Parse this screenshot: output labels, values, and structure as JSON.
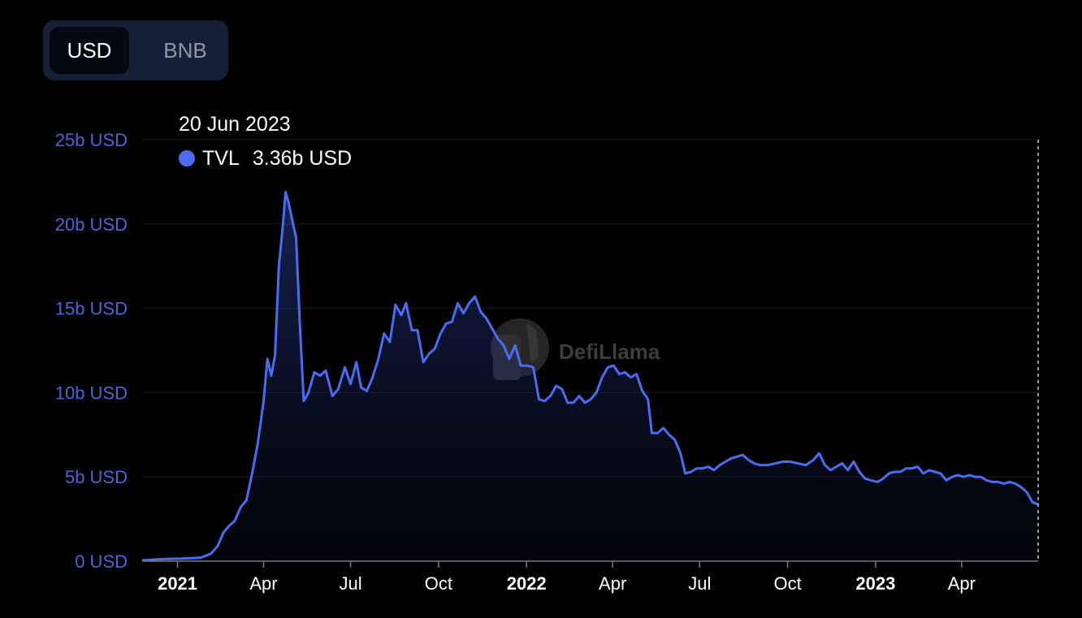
{
  "currency_toggle": {
    "options": [
      {
        "label": "USD",
        "active": true
      },
      {
        "label": "BNB",
        "active": false
      }
    ]
  },
  "tooltip": {
    "date": "20 Jun 2023",
    "series_name": "TVL",
    "value": "3.36b USD"
  },
  "watermark": {
    "text": "DefiLlama"
  },
  "colors": {
    "line": "#4a6cf0",
    "text_axis": "#4d63d8",
    "toggle_bg": "#152036",
    "grid": "#1a1a1a"
  },
  "chart_data": {
    "type": "area",
    "series": [
      {
        "name": "TVL"
      }
    ],
    "ylim": [
      0,
      25
    ],
    "y_ticks": [
      {
        "value": 0,
        "label": "0 USD"
      },
      {
        "value": 5,
        "label": "5b USD"
      },
      {
        "value": 10,
        "label": "10b USD"
      },
      {
        "value": 15,
        "label": "15b USD"
      },
      {
        "value": 20,
        "label": "20b USD"
      },
      {
        "value": 25,
        "label": "25b USD"
      }
    ],
    "xlim": [
      "2020-11-25",
      "2023-06-20"
    ],
    "x_ticks": [
      {
        "date": "2021-01-01",
        "label": "2021",
        "bold": true
      },
      {
        "date": "2021-04-01",
        "label": "Apr",
        "bold": false
      },
      {
        "date": "2021-07-01",
        "label": "Jul",
        "bold": false
      },
      {
        "date": "2021-10-01",
        "label": "Oct",
        "bold": false
      },
      {
        "date": "2022-01-01",
        "label": "2022",
        "bold": true
      },
      {
        "date": "2022-04-01",
        "label": "Apr",
        "bold": false
      },
      {
        "date": "2022-07-01",
        "label": "Jul",
        "bold": false
      },
      {
        "date": "2022-10-01",
        "label": "Oct",
        "bold": false
      },
      {
        "date": "2023-01-01",
        "label": "2023",
        "bold": true
      },
      {
        "date": "2023-04-01",
        "label": "Apr",
        "bold": false
      }
    ],
    "grid": true,
    "values": [
      [
        "2020-11-25",
        0.05
      ],
      [
        "2020-12-15",
        0.12
      ],
      [
        "2021-01-05",
        0.15
      ],
      [
        "2021-01-25",
        0.2
      ],
      [
        "2021-02-05",
        0.45
      ],
      [
        "2021-02-12",
        0.9
      ],
      [
        "2021-02-18",
        1.7
      ],
      [
        "2021-02-24",
        2.1
      ],
      [
        "2021-03-02",
        2.4
      ],
      [
        "2021-03-08",
        3.2
      ],
      [
        "2021-03-14",
        3.6
      ],
      [
        "2021-03-20",
        5.2
      ],
      [
        "2021-03-26",
        7.0
      ],
      [
        "2021-04-01",
        9.5
      ],
      [
        "2021-04-05",
        12.0
      ],
      [
        "2021-04-09",
        11.0
      ],
      [
        "2021-04-13",
        12.2
      ],
      [
        "2021-04-17",
        17.5
      ],
      [
        "2021-04-21",
        19.8
      ],
      [
        "2021-04-24",
        21.9
      ],
      [
        "2021-04-27",
        21.3
      ],
      [
        "2021-05-01",
        20.2
      ],
      [
        "2021-05-05",
        19.2
      ],
      [
        "2021-05-09",
        14.0
      ],
      [
        "2021-05-13",
        9.5
      ],
      [
        "2021-05-18",
        10.0
      ],
      [
        "2021-05-24",
        11.2
      ],
      [
        "2021-05-30",
        11.0
      ],
      [
        "2021-06-05",
        11.3
      ],
      [
        "2021-06-12",
        9.8
      ],
      [
        "2021-06-18",
        10.2
      ],
      [
        "2021-06-25",
        11.5
      ],
      [
        "2021-07-01",
        10.5
      ],
      [
        "2021-07-07",
        11.8
      ],
      [
        "2021-07-12",
        10.3
      ],
      [
        "2021-07-18",
        10.1
      ],
      [
        "2021-07-24",
        10.9
      ],
      [
        "2021-07-30",
        12.0
      ],
      [
        "2021-08-05",
        13.5
      ],
      [
        "2021-08-11",
        13.0
      ],
      [
        "2021-08-17",
        15.2
      ],
      [
        "2021-08-23",
        14.6
      ],
      [
        "2021-08-28",
        15.3
      ],
      [
        "2021-09-03",
        13.7
      ],
      [
        "2021-09-09",
        13.7
      ],
      [
        "2021-09-15",
        11.8
      ],
      [
        "2021-09-21",
        12.3
      ],
      [
        "2021-09-27",
        12.6
      ],
      [
        "2021-10-03",
        13.5
      ],
      [
        "2021-10-09",
        14.1
      ],
      [
        "2021-10-15",
        14.2
      ],
      [
        "2021-10-21",
        15.3
      ],
      [
        "2021-10-27",
        14.7
      ],
      [
        "2021-11-02",
        15.3
      ],
      [
        "2021-11-08",
        15.7
      ],
      [
        "2021-11-14",
        14.8
      ],
      [
        "2021-11-20",
        14.4
      ],
      [
        "2021-11-26",
        13.8
      ],
      [
        "2021-12-02",
        13.2
      ],
      [
        "2021-12-08",
        12.8
      ],
      [
        "2021-12-14",
        12.0
      ],
      [
        "2021-12-20",
        12.8
      ],
      [
        "2021-12-26",
        11.6
      ],
      [
        "2022-01-02",
        11.6
      ],
      [
        "2022-01-08",
        11.5
      ],
      [
        "2022-01-14",
        9.6
      ],
      [
        "2022-01-20",
        9.5
      ],
      [
        "2022-01-26",
        9.8
      ],
      [
        "2022-02-01",
        10.4
      ],
      [
        "2022-02-07",
        10.2
      ],
      [
        "2022-02-13",
        9.4
      ],
      [
        "2022-02-19",
        9.4
      ],
      [
        "2022-02-25",
        9.8
      ],
      [
        "2022-03-03",
        9.4
      ],
      [
        "2022-03-09",
        9.6
      ],
      [
        "2022-03-15",
        10.0
      ],
      [
        "2022-03-21",
        10.9
      ],
      [
        "2022-03-27",
        11.5
      ],
      [
        "2022-04-02",
        11.6
      ],
      [
        "2022-04-08",
        11.1
      ],
      [
        "2022-04-14",
        11.2
      ],
      [
        "2022-04-20",
        10.9
      ],
      [
        "2022-04-26",
        11.1
      ],
      [
        "2022-05-02",
        10.1
      ],
      [
        "2022-05-08",
        9.6
      ],
      [
        "2022-05-12",
        7.6
      ],
      [
        "2022-05-18",
        7.6
      ],
      [
        "2022-05-24",
        7.9
      ],
      [
        "2022-05-30",
        7.5
      ],
      [
        "2022-06-05",
        7.2
      ],
      [
        "2022-06-11",
        6.4
      ],
      [
        "2022-06-16",
        5.2
      ],
      [
        "2022-06-22",
        5.3
      ],
      [
        "2022-06-28",
        5.5
      ],
      [
        "2022-07-04",
        5.5
      ],
      [
        "2022-07-10",
        5.6
      ],
      [
        "2022-07-16",
        5.4
      ],
      [
        "2022-07-22",
        5.7
      ],
      [
        "2022-07-28",
        5.9
      ],
      [
        "2022-08-03",
        6.1
      ],
      [
        "2022-08-09",
        6.2
      ],
      [
        "2022-08-15",
        6.3
      ],
      [
        "2022-08-21",
        6.0
      ],
      [
        "2022-08-27",
        5.8
      ],
      [
        "2022-09-02",
        5.7
      ],
      [
        "2022-09-10",
        5.7
      ],
      [
        "2022-09-18",
        5.8
      ],
      [
        "2022-09-26",
        5.9
      ],
      [
        "2022-10-04",
        5.9
      ],
      [
        "2022-10-12",
        5.8
      ],
      [
        "2022-10-20",
        5.7
      ],
      [
        "2022-10-28",
        6.0
      ],
      [
        "2022-11-03",
        6.4
      ],
      [
        "2022-11-09",
        5.7
      ],
      [
        "2022-11-15",
        5.4
      ],
      [
        "2022-11-21",
        5.6
      ],
      [
        "2022-11-27",
        5.8
      ],
      [
        "2022-12-03",
        5.4
      ],
      [
        "2022-12-09",
        5.9
      ],
      [
        "2022-12-15",
        5.3
      ],
      [
        "2022-12-21",
        4.9
      ],
      [
        "2022-12-27",
        4.8
      ],
      [
        "2023-01-03",
        4.7
      ],
      [
        "2023-01-09",
        4.9
      ],
      [
        "2023-01-15",
        5.2
      ],
      [
        "2023-01-21",
        5.3
      ],
      [
        "2023-01-27",
        5.3
      ],
      [
        "2023-02-02",
        5.5
      ],
      [
        "2023-02-08",
        5.5
      ],
      [
        "2023-02-14",
        5.6
      ],
      [
        "2023-02-20",
        5.2
      ],
      [
        "2023-02-26",
        5.4
      ],
      [
        "2023-03-04",
        5.3
      ],
      [
        "2023-03-10",
        5.2
      ],
      [
        "2023-03-16",
        4.8
      ],
      [
        "2023-03-22",
        5.0
      ],
      [
        "2023-03-28",
        5.1
      ],
      [
        "2023-04-03",
        5.0
      ],
      [
        "2023-04-09",
        5.1
      ],
      [
        "2023-04-15",
        5.0
      ],
      [
        "2023-04-21",
        5.0
      ],
      [
        "2023-04-27",
        4.8
      ],
      [
        "2023-05-03",
        4.7
      ],
      [
        "2023-05-09",
        4.7
      ],
      [
        "2023-05-15",
        4.6
      ],
      [
        "2023-05-21",
        4.7
      ],
      [
        "2023-05-27",
        4.6
      ],
      [
        "2023-06-02",
        4.4
      ],
      [
        "2023-06-08",
        4.1
      ],
      [
        "2023-06-14",
        3.5
      ],
      [
        "2023-06-20",
        3.36
      ]
    ]
  }
}
